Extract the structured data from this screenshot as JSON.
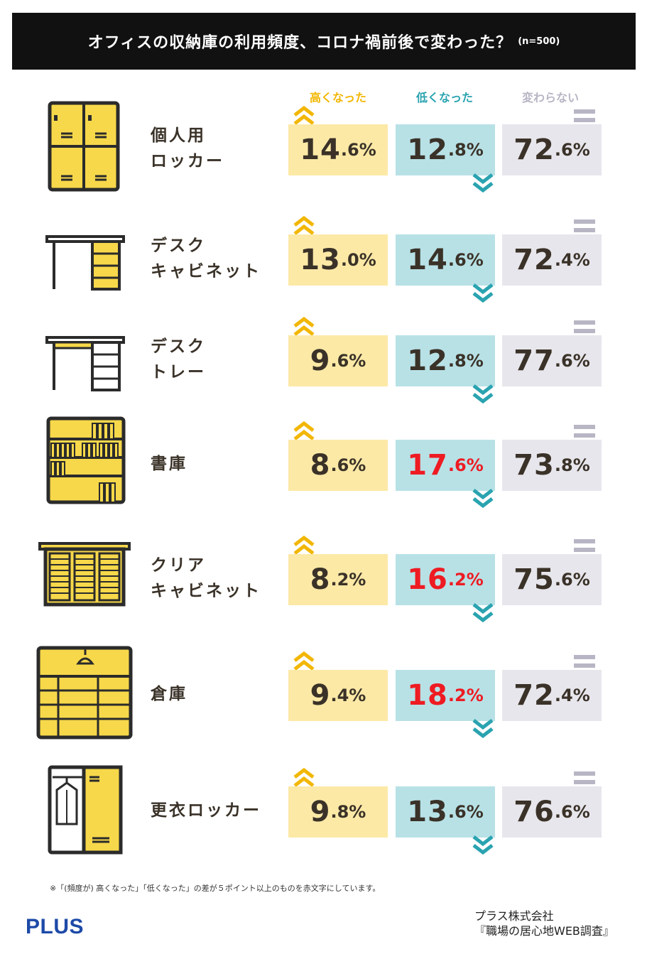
{
  "title": "オフィスの収納庫の利用頻度、コロナ禍前後で変わった？",
  "sample": "(n=500)",
  "columns": {
    "up": "高くなった",
    "down": "低くなった",
    "same": "変わらない"
  },
  "colors": {
    "up": "#f2b705",
    "down": "#2aa3b0",
    "same": "#b8b5c4",
    "highlight": "#ee1b22"
  },
  "chart_data": {
    "type": "table",
    "columns": [
      "高くなった",
      "低くなった",
      "変わらない"
    ],
    "rows": [
      {
        "label_lines": [
          "個人用",
          "ロッカー"
        ],
        "icon": "locker-icon",
        "up": {
          "int": "14",
          "dec": ".6%"
        },
        "down": {
          "int": "12",
          "dec": ".8%"
        },
        "same": {
          "int": "72",
          "dec": ".6%"
        },
        "values": [
          14.6,
          12.8,
          72.6
        ],
        "highlight": false
      },
      {
        "label_lines": [
          "デスク",
          "キャビネット"
        ],
        "icon": "desk-cabinet-icon",
        "up": {
          "int": "13",
          "dec": ".0%"
        },
        "down": {
          "int": "14",
          "dec": ".6%"
        },
        "same": {
          "int": "72",
          "dec": ".4%"
        },
        "values": [
          13.0,
          14.6,
          72.4
        ],
        "highlight": false
      },
      {
        "label_lines": [
          "デスク",
          "トレー"
        ],
        "icon": "desk-tray-icon",
        "up": {
          "int": "9",
          "dec": ".6%"
        },
        "down": {
          "int": "12",
          "dec": ".8%"
        },
        "same": {
          "int": "77",
          "dec": ".6%"
        },
        "values": [
          9.6,
          12.8,
          77.6
        ],
        "highlight": false
      },
      {
        "label_lines": [
          "書庫"
        ],
        "icon": "bookshelf-icon",
        "up": {
          "int": "8",
          "dec": ".6%"
        },
        "down": {
          "int": "17",
          "dec": ".6%"
        },
        "same": {
          "int": "73",
          "dec": ".8%"
        },
        "values": [
          8.6,
          17.6,
          73.8
        ],
        "highlight": true
      },
      {
        "label_lines": [
          "クリア",
          "キャビネット"
        ],
        "icon": "clear-cabinet-icon",
        "up": {
          "int": "8",
          "dec": ".2%"
        },
        "down": {
          "int": "16",
          "dec": ".2%"
        },
        "same": {
          "int": "75",
          "dec": ".6%"
        },
        "values": [
          8.2,
          16.2,
          75.6
        ],
        "highlight": true
      },
      {
        "label_lines": [
          "倉庫"
        ],
        "icon": "warehouse-icon",
        "up": {
          "int": "9",
          "dec": ".4%"
        },
        "down": {
          "int": "18",
          "dec": ".2%"
        },
        "same": {
          "int": "72",
          "dec": ".4%"
        },
        "values": [
          9.4,
          18.2,
          72.4
        ],
        "highlight": true
      },
      {
        "label_lines": [
          "更衣ロッカー"
        ],
        "icon": "changing-locker-icon",
        "up": {
          "int": "9",
          "dec": ".8%"
        },
        "down": {
          "int": "13",
          "dec": ".6%"
        },
        "same": {
          "int": "76",
          "dec": ".6%"
        },
        "values": [
          9.8,
          13.6,
          76.6
        ],
        "highlight": false
      }
    ]
  },
  "footnote": "※「(頻度が) 高くなった」「低くなった」の差が５ポイント以上のものを赤文字にしています。",
  "logo": "PLUS",
  "source_lines": [
    "プラス株式会社",
    "『職場の居心地WEB調査』"
  ]
}
